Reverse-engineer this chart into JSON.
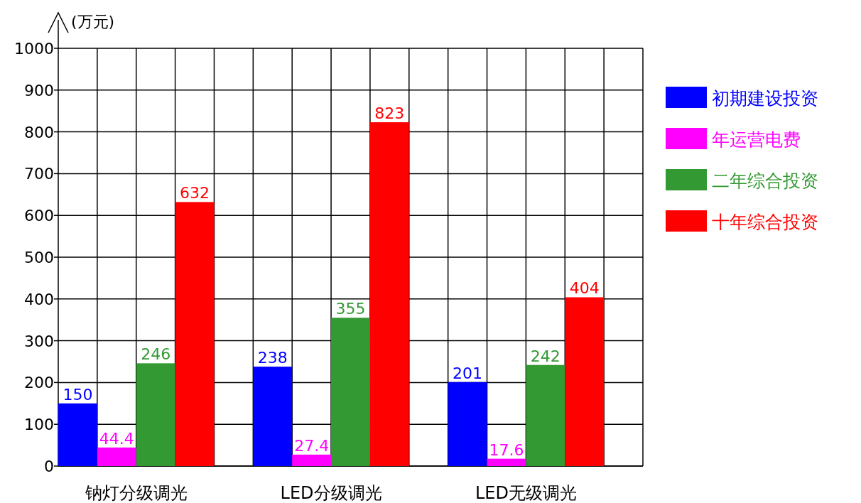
{
  "chart_data": {
    "type": "bar",
    "ylabel": "(万元)",
    "categories": [
      "钠灯分级调光",
      "LED分级调光",
      "LED无级调光"
    ],
    "series": [
      {
        "name": "初期建设投资",
        "color": "#0000ff",
        "values": [
          150,
          238,
          201
        ]
      },
      {
        "name": "年运营电费",
        "color": "#ff00ff",
        "values": [
          44.4,
          27.4,
          17.6
        ]
      },
      {
        "name": "二年综合投资",
        "color": "#339933",
        "values": [
          246,
          355,
          242
        ]
      },
      {
        "name": "十年综合投资",
        "color": "#ff0000",
        "values": [
          632,
          823,
          404
        ]
      }
    ],
    "ylim": [
      0,
      1000
    ],
    "yticks": [
      0,
      100,
      200,
      300,
      400,
      500,
      600,
      700,
      800,
      900,
      1000
    ],
    "grid": true,
    "legend": "right",
    "data_labels": true
  }
}
